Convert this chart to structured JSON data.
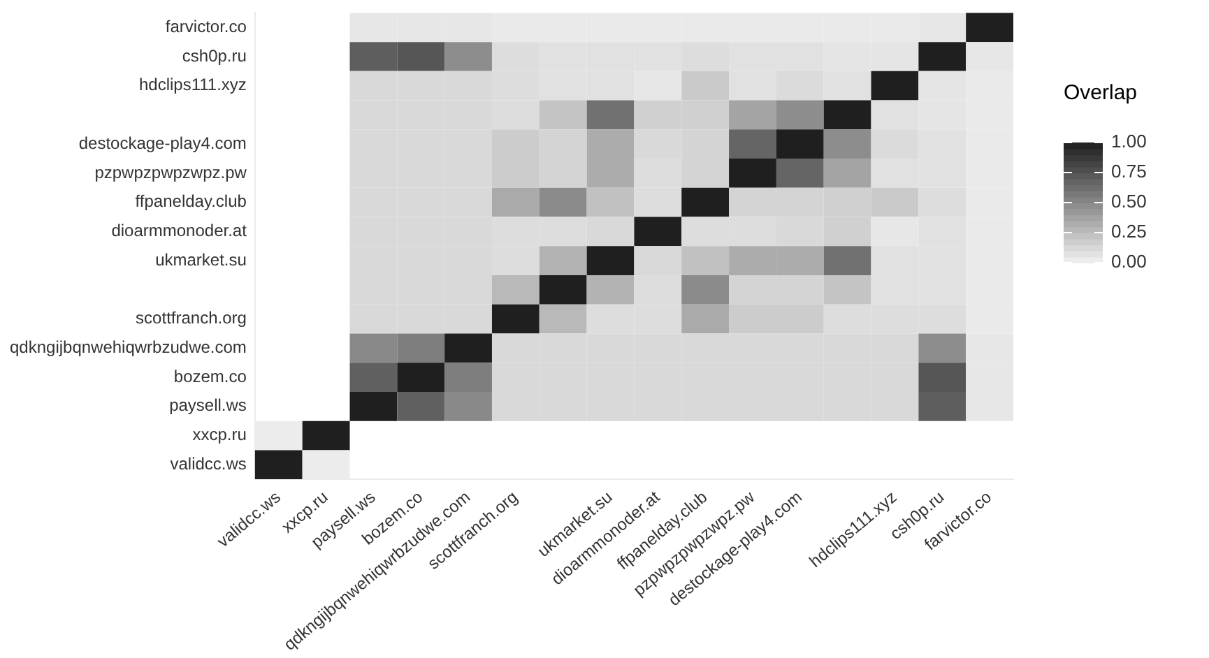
{
  "chart_data": {
    "type": "heatmap",
    "clabel": "Overlap",
    "categories": [
      "validcc.ws",
      "xxcp.ru",
      "paysell.ws",
      "bozem.co",
      "qdkngijbqnwehiqwrbzudwe.com",
      "scottfranch.org",
      null,
      "ukmarket.su",
      "dioarmmonoder.at",
      "ffpanelday.club",
      "pzpwpzpwpzwpz.pw",
      "destockage-play4.com",
      null,
      "hdclips111.xyz",
      "csh0p.ru",
      "farvictor.co"
    ],
    "y_categories": [
      "farvictor.co",
      "csh0p.ru",
      "hdclips111.xyz",
      null,
      "destockage-play4.com",
      "pzpwpzpwpzwpz.pw",
      "ffpanelday.club",
      "dioarmmonoder.at",
      "ukmarket.su",
      null,
      "scottfranch.org",
      "qdkngijbqnwehiqwrbzudwe.com",
      "bozem.co",
      "paysell.ws",
      "xxcp.ru",
      "validcc.ws"
    ],
    "cells": [
      [
        null,
        null,
        0.05,
        0.05,
        0.05,
        0.04,
        0.04,
        0.04,
        0.04,
        0.04,
        0.04,
        0.04,
        0.04,
        0.04,
        0.05,
        1
      ],
      [
        null,
        null,
        0.7,
        0.74,
        0.48,
        0.1,
        0.08,
        0.08,
        0.08,
        0.1,
        0.08,
        0.08,
        0.06,
        0.06,
        1,
        0.05
      ],
      [
        null,
        null,
        0.12,
        0.12,
        0.12,
        0.1,
        0.08,
        0.08,
        0.05,
        0.19,
        0.08,
        0.11,
        0.08,
        1,
        0.06,
        0.04
      ],
      [
        null,
        null,
        0.12,
        0.12,
        0.12,
        0.1,
        0.22,
        0.61,
        0.16,
        0.16,
        0.37,
        0.48,
        1,
        0.08,
        0.06,
        0.04
      ],
      [
        null,
        null,
        0.12,
        0.12,
        0.12,
        0.18,
        0.14,
        0.33,
        0.12,
        0.14,
        0.67,
        1,
        0.48,
        0.11,
        0.08,
        0.04
      ],
      [
        null,
        null,
        0.12,
        0.12,
        0.12,
        0.18,
        0.14,
        0.33,
        0.1,
        0.14,
        1,
        0.67,
        0.37,
        0.08,
        0.08,
        0.04
      ],
      [
        null,
        null,
        0.12,
        0.12,
        0.12,
        0.34,
        0.49,
        0.23,
        0.1,
        1,
        0.14,
        0.14,
        0.16,
        0.19,
        0.1,
        0.04
      ],
      [
        null,
        null,
        0.12,
        0.12,
        0.12,
        0.1,
        0.1,
        0.12,
        1,
        0.1,
        0.1,
        0.12,
        0.16,
        0.05,
        0.08,
        0.04
      ],
      [
        null,
        null,
        0.12,
        0.12,
        0.12,
        0.1,
        0.3,
        1,
        0.12,
        0.23,
        0.33,
        0.33,
        0.61,
        0.08,
        0.08,
        0.04
      ],
      [
        null,
        null,
        0.12,
        0.12,
        0.12,
        0.27,
        1,
        0.3,
        0.1,
        0.49,
        0.14,
        0.14,
        0.22,
        0.08,
        0.08,
        0.04
      ],
      [
        null,
        null,
        0.12,
        0.12,
        0.12,
        1,
        0.27,
        0.1,
        0.1,
        0.34,
        0.18,
        0.18,
        0.1,
        0.1,
        0.1,
        0.04
      ],
      [
        null,
        null,
        0.5,
        0.55,
        1,
        0.12,
        0.12,
        0.12,
        0.12,
        0.12,
        0.12,
        0.12,
        0.12,
        0.12,
        0.48,
        0.05
      ],
      [
        null,
        null,
        0.69,
        1,
        0.55,
        0.12,
        0.12,
        0.12,
        0.12,
        0.12,
        0.12,
        0.12,
        0.12,
        0.12,
        0.74,
        0.05
      ],
      [
        null,
        null,
        1,
        0.69,
        0.5,
        0.12,
        0.12,
        0.12,
        0.12,
        0.12,
        0.12,
        0.12,
        0.12,
        0.12,
        0.7,
        0.05
      ],
      [
        0.03,
        1,
        null,
        null,
        null,
        null,
        null,
        null,
        null,
        null,
        null,
        null,
        null,
        null,
        null,
        null
      ],
      [
        1,
        0.03,
        null,
        null,
        null,
        null,
        null,
        null,
        null,
        null,
        null,
        null,
        null,
        null,
        null,
        null
      ]
    ],
    "clim": [
      0,
      1
    ],
    "cticks": [
      {
        "value": 0,
        "label": "0.00"
      },
      {
        "value": 0.25,
        "label": "0.25"
      },
      {
        "value": 0.5,
        "label": "0.50"
      },
      {
        "value": 0.75,
        "label": "0.75"
      },
      {
        "value": 1,
        "label": "1.00"
      }
    ]
  }
}
